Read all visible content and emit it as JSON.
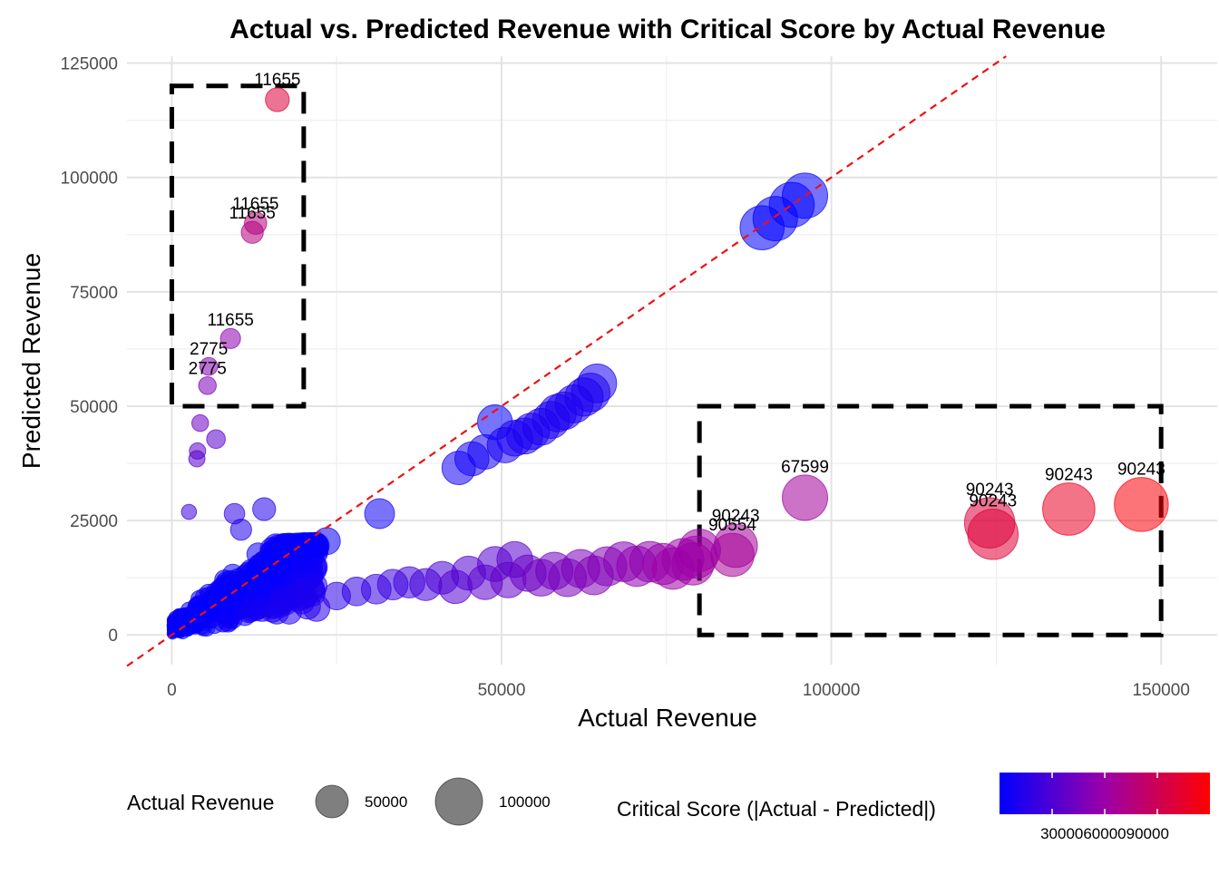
{
  "chart_data": {
    "type": "scatter",
    "title": "Actual vs. Predicted Revenue with Critical Score by Actual Revenue",
    "xlabel": "Actual Revenue",
    "ylabel": "Predicted Revenue",
    "xlim": [
      -6800,
      158500
    ],
    "ylim": [
      -6500,
      126500
    ],
    "x_ticks": [
      0,
      50000,
      100000,
      150000
    ],
    "y_ticks": [
      0,
      25000,
      50000,
      75000,
      100000,
      125000
    ],
    "x_tick_labels": [
      "0",
      "50000",
      "100000",
      "150000"
    ],
    "y_tick_labels": [
      "0",
      "25000",
      "50000",
      "75000",
      "100000",
      "125000"
    ],
    "grid": true,
    "reference_line": {
      "type": "y=x",
      "color": "#ee1111",
      "style": "dashed"
    },
    "highlight_boxes": [
      {
        "x": [
          0,
          20000
        ],
        "y": [
          50000,
          120000
        ]
      },
      {
        "x": [
          80000,
          150000
        ],
        "y": [
          0,
          50000
        ]
      }
    ],
    "color_scale": {
      "low": "#0000ff",
      "high": "#ff0000",
      "min": 0,
      "max": 122000
    },
    "size_legend": {
      "title": "Actual Revenue",
      "values": [
        50000,
        100000
      ],
      "labels": [
        "50000",
        "100000"
      ]
    },
    "color_legend": {
      "title": "Critical Score (|Actual - Predicted|)",
      "labels": [
        "30000",
        "60000",
        "90000"
      ],
      "label_text": "300006000090000"
    },
    "points": [
      {
        "x": 16000,
        "y": 117000,
        "label": "11655"
      },
      {
        "x": 12700,
        "y": 90000,
        "label": "11655"
      },
      {
        "x": 12200,
        "y": 88000,
        "label": "11655"
      },
      {
        "x": 8900,
        "y": 64800,
        "label": "11655"
      },
      {
        "x": 5600,
        "y": 58700,
        "label": "2775"
      },
      {
        "x": 5400,
        "y": 54500,
        "label": "2775"
      },
      {
        "x": 4300,
        "y": 46300
      },
      {
        "x": 6700,
        "y": 42800
      },
      {
        "x": 3900,
        "y": 40200
      },
      {
        "x": 3800,
        "y": 38500
      },
      {
        "x": 2600,
        "y": 26900
      },
      {
        "x": 9500,
        "y": 26500
      },
      {
        "x": 14000,
        "y": 27500
      },
      {
        "x": 10500,
        "y": 23000
      },
      {
        "x": 31500,
        "y": 26500
      },
      {
        "x": 23500,
        "y": 20500
      },
      {
        "x": 20000,
        "y": 19000
      },
      {
        "x": 96000,
        "y": 30000,
        "label": "67599"
      },
      {
        "x": 85500,
        "y": 19500,
        "label": "90243"
      },
      {
        "x": 85000,
        "y": 17500,
        "label": "90554"
      },
      {
        "x": 80000,
        "y": 18500
      },
      {
        "x": 79500,
        "y": 17000
      },
      {
        "x": 79000,
        "y": 15500
      },
      {
        "x": 124000,
        "y": 24500,
        "label": "90243"
      },
      {
        "x": 124500,
        "y": 22000,
        "label": "90243"
      },
      {
        "x": 136000,
        "y": 27500,
        "label": "90243"
      },
      {
        "x": 147000,
        "y": 28500,
        "label": "90243"
      },
      {
        "x": 89500,
        "y": 89000
      },
      {
        "x": 91500,
        "y": 91000
      },
      {
        "x": 94000,
        "y": 94000
      },
      {
        "x": 96000,
        "y": 96000
      },
      {
        "x": 43500,
        "y": 36500
      },
      {
        "x": 45500,
        "y": 38500
      },
      {
        "x": 47500,
        "y": 40000
      },
      {
        "x": 49000,
        "y": 46500
      },
      {
        "x": 50500,
        "y": 41500
      },
      {
        "x": 52000,
        "y": 43000
      },
      {
        "x": 53500,
        "y": 43500
      },
      {
        "x": 54500,
        "y": 44500
      },
      {
        "x": 56000,
        "y": 45500
      },
      {
        "x": 57500,
        "y": 47000
      },
      {
        "x": 58500,
        "y": 48500
      },
      {
        "x": 59500,
        "y": 49000
      },
      {
        "x": 61000,
        "y": 50500
      },
      {
        "x": 62500,
        "y": 52000
      },
      {
        "x": 63500,
        "y": 53000
      },
      {
        "x": 64500,
        "y": 55000
      },
      {
        "x": 25000,
        "y": 8500
      },
      {
        "x": 28000,
        "y": 9500
      },
      {
        "x": 31000,
        "y": 10000
      },
      {
        "x": 33500,
        "y": 11000
      },
      {
        "x": 36000,
        "y": 11500
      },
      {
        "x": 38500,
        "y": 11000
      },
      {
        "x": 41000,
        "y": 12500
      },
      {
        "x": 43000,
        "y": 10500
      },
      {
        "x": 45000,
        "y": 13500
      },
      {
        "x": 47500,
        "y": 11500
      },
      {
        "x": 49000,
        "y": 15500
      },
      {
        "x": 51000,
        "y": 12000
      },
      {
        "x": 52000,
        "y": 16500
      },
      {
        "x": 54000,
        "y": 13500
      },
      {
        "x": 56000,
        "y": 12500
      },
      {
        "x": 58000,
        "y": 14000
      },
      {
        "x": 60000,
        "y": 12500
      },
      {
        "x": 62000,
        "y": 14500
      },
      {
        "x": 64000,
        "y": 13000
      },
      {
        "x": 66000,
        "y": 15000
      },
      {
        "x": 68500,
        "y": 16000
      },
      {
        "x": 70500,
        "y": 15000
      },
      {
        "x": 72500,
        "y": 16000
      },
      {
        "x": 74500,
        "y": 15500
      },
      {
        "x": 76000,
        "y": 14500
      },
      {
        "x": 77500,
        "y": 16500
      }
    ],
    "dense_cluster": {
      "x_range": [
        0,
        22000
      ],
      "y_range": [
        0,
        20000
      ],
      "note": "many overlapping small points concentrated near the origin"
    }
  }
}
